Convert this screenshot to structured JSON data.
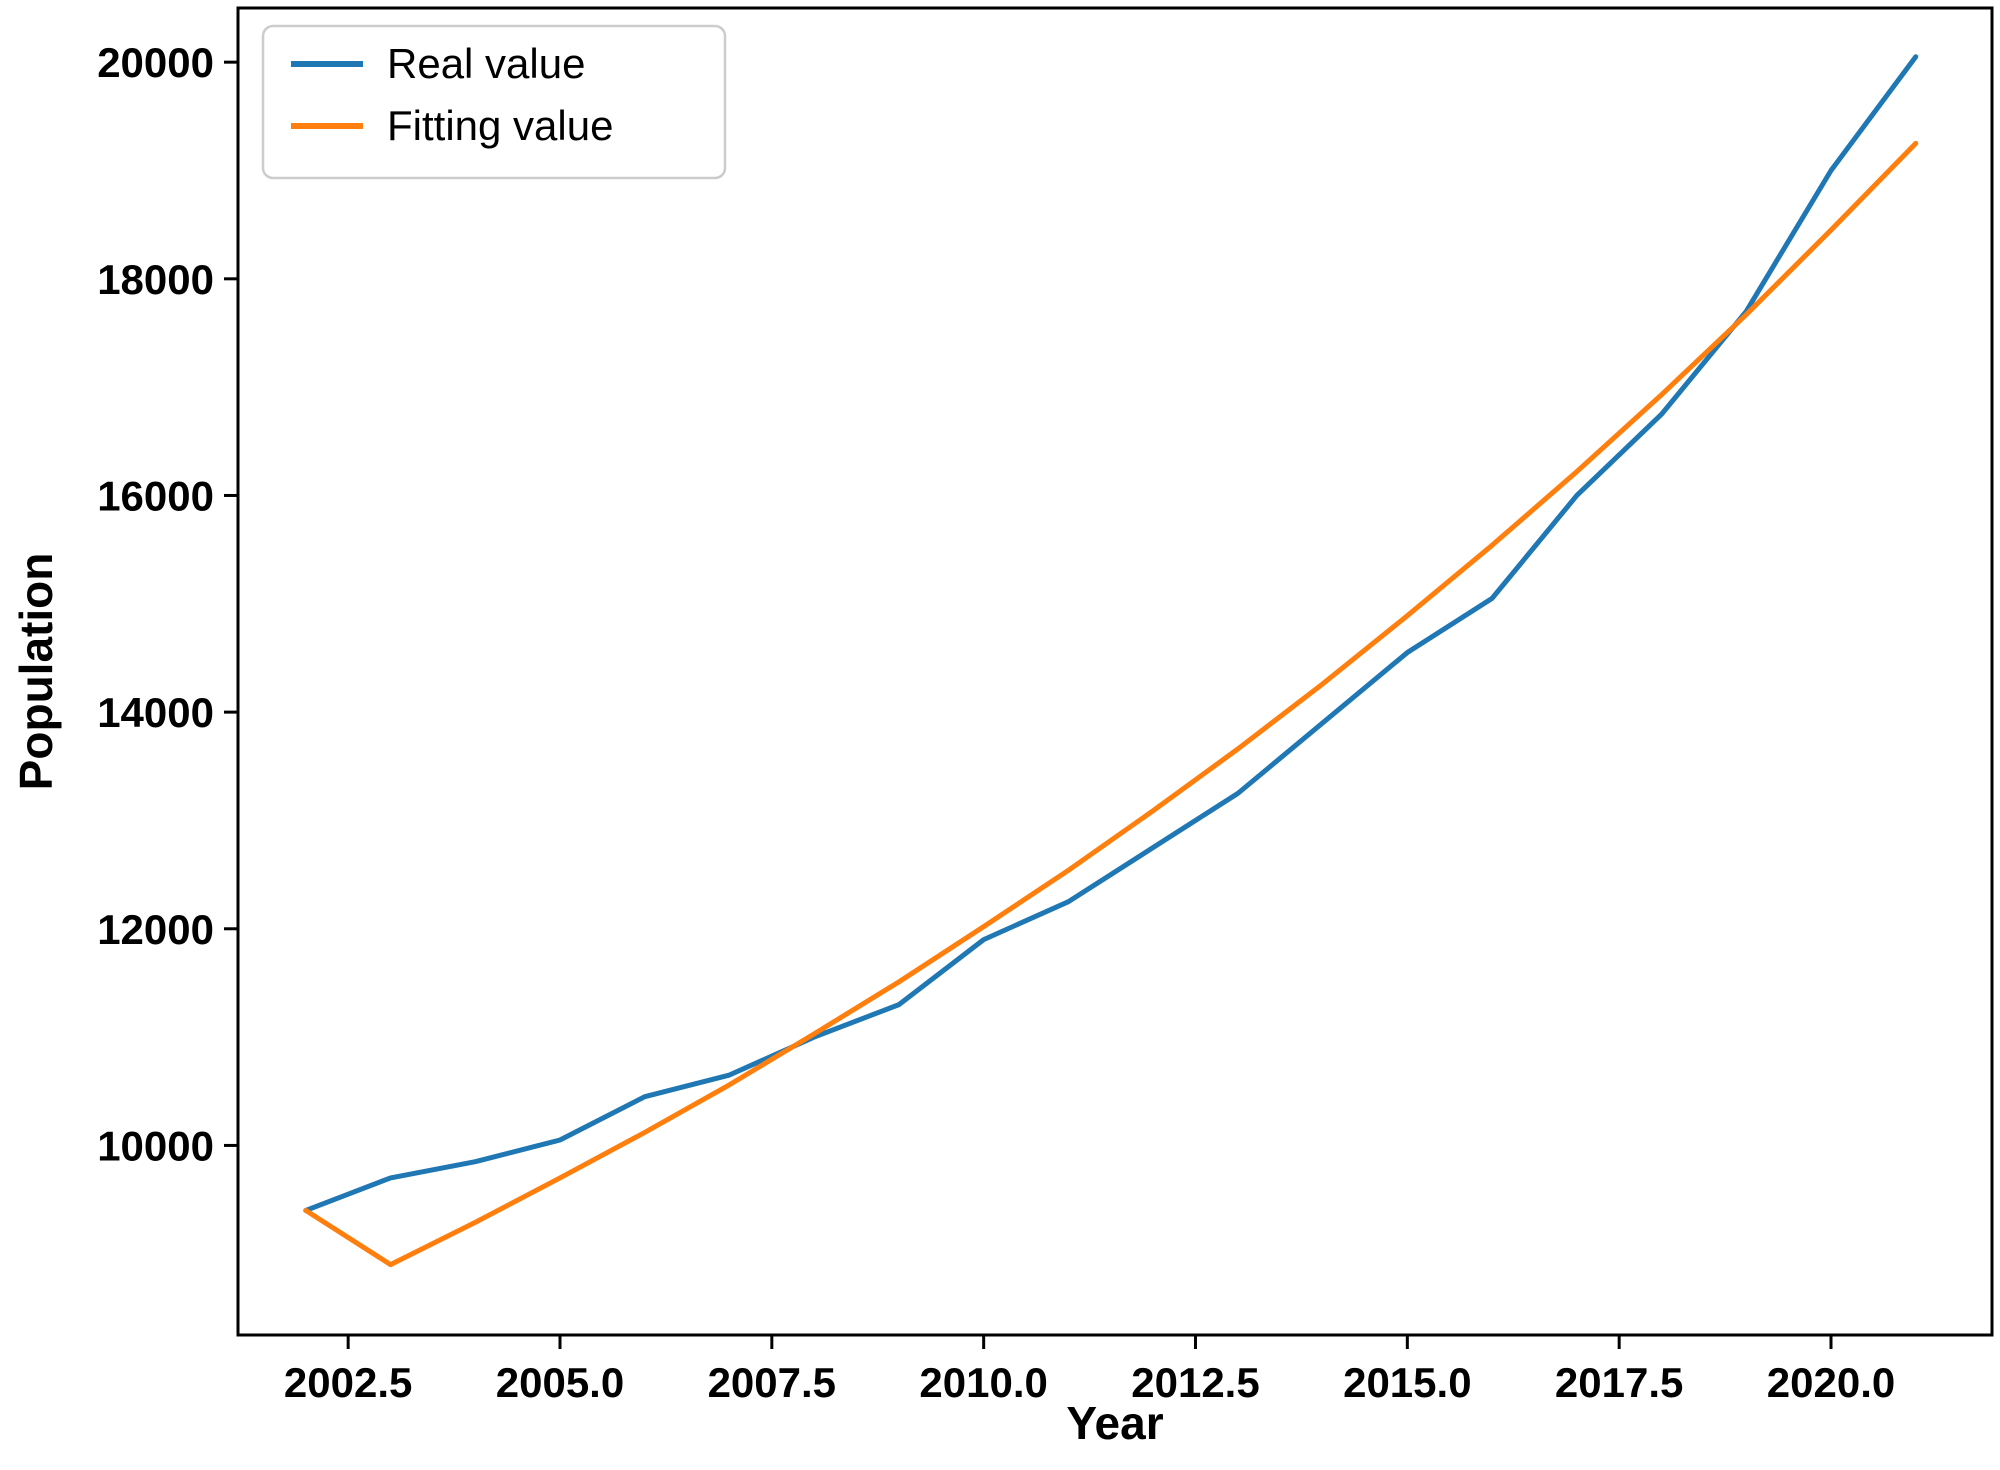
{
  "figure": {
    "background": "#ffffff",
    "border_color": "#000000"
  },
  "chart_data": {
    "type": "line",
    "title": "",
    "xlabel": "Year",
    "ylabel": "Population",
    "xlim": [
      2001.2,
      2021.9
    ],
    "ylim": [
      8250,
      20500
    ],
    "grid": false,
    "x_ticks": [
      2002.5,
      2005.0,
      2007.5,
      2010.0,
      2012.5,
      2015.0,
      2017.5,
      2020.0
    ],
    "x_tick_labels": [
      "2002.5",
      "2005.0",
      "2007.5",
      "2010.0",
      "2012.5",
      "2015.0",
      "2017.5",
      "2020.0"
    ],
    "y_ticks": [
      10000,
      12000,
      14000,
      16000,
      18000,
      20000
    ],
    "y_tick_labels": [
      "10000",
      "12000",
      "14000",
      "16000",
      "18000",
      "20000"
    ],
    "legend": {
      "position": "top-left",
      "entries": [
        "Real value",
        "Fitting value"
      ]
    },
    "x": [
      2002,
      2003,
      2004,
      2005,
      2006,
      2007,
      2008,
      2009,
      2010,
      2011,
      2012,
      2013,
      2014,
      2015,
      2016,
      2017,
      2018,
      2019,
      2020,
      2021
    ],
    "series": [
      {
        "name": "Real value",
        "color": "#1f77b4",
        "values": [
          9400,
          9700,
          9850,
          10050,
          10450,
          10650,
          11000,
          11300,
          11900,
          12250,
          12750,
          13250,
          13900,
          14550,
          15050,
          16000,
          16750,
          17700,
          19000,
          20050
        ]
      },
      {
        "name": "Fitting value",
        "color": "#ff7f0e",
        "values": [
          9400,
          8900,
          9290,
          9700,
          10120,
          10560,
          11030,
          11510,
          12020,
          12540,
          13090,
          13660,
          14260,
          14890,
          15540,
          16220,
          16930,
          17670,
          18450,
          19250
        ]
      }
    ]
  }
}
